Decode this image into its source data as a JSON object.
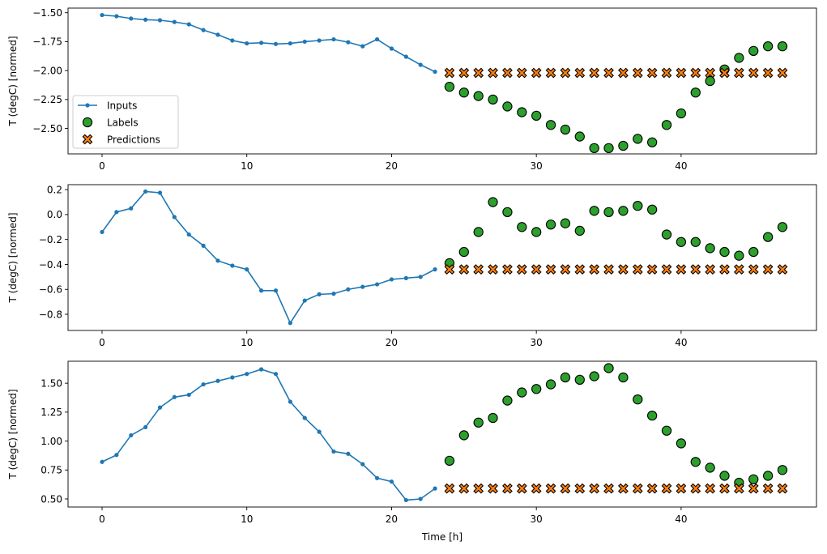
{
  "chart_data": [
    {
      "type": "line",
      "xlabel": "",
      "ylabel": "T (degC) [normed]",
      "xlim": [
        -2.35,
        49.35
      ],
      "ylim": [
        -2.72,
        -1.46
      ],
      "xticks": [
        0,
        10,
        20,
        30,
        40
      ],
      "yticks": [
        -2.5,
        -2.25,
        -2.0,
        -1.75,
        -1.5
      ],
      "ytick_labels": [
        "−2.50",
        "−2.25",
        "−2.00",
        "−1.75",
        "−1.50"
      ],
      "legend": {
        "placement": "lower-left",
        "entries": [
          "Inputs",
          "Labels",
          "Predictions"
        ]
      },
      "series": [
        {
          "name": "Inputs",
          "color": "#1f77b4",
          "x": [
            0,
            1,
            2,
            3,
            4,
            5,
            6,
            7,
            8,
            9,
            10,
            11,
            12,
            13,
            14,
            15,
            16,
            17,
            18,
            19,
            20,
            21,
            22,
            23
          ],
          "y": [
            -1.52,
            -1.53,
            -1.55,
            -1.56,
            -1.565,
            -1.58,
            -1.6,
            -1.65,
            -1.69,
            -1.74,
            -1.765,
            -1.76,
            -1.77,
            -1.765,
            -1.75,
            -1.74,
            -1.73,
            -1.755,
            -1.79,
            -1.73,
            -1.81,
            -1.88,
            -1.95,
            -2.01
          ]
        },
        {
          "name": "Labels",
          "color": "#2ca02c",
          "x": [
            24,
            25,
            26,
            27,
            28,
            29,
            30,
            31,
            32,
            33,
            34,
            35,
            36,
            37,
            38,
            39,
            40,
            41,
            42,
            43,
            44,
            45,
            46,
            47
          ],
          "y": [
            -2.14,
            -2.19,
            -2.22,
            -2.25,
            -2.31,
            -2.36,
            -2.39,
            -2.47,
            -2.51,
            -2.57,
            -2.67,
            -2.67,
            -2.65,
            -2.59,
            -2.62,
            -2.47,
            -2.37,
            -2.19,
            -2.09,
            -1.99,
            -1.89,
            -1.83,
            -1.79,
            -1.79
          ]
        },
        {
          "name": "Predictions",
          "color": "#ff7f0e",
          "x": [
            24,
            25,
            26,
            27,
            28,
            29,
            30,
            31,
            32,
            33,
            34,
            35,
            36,
            37,
            38,
            39,
            40,
            41,
            42,
            43,
            44,
            45,
            46,
            47
          ],
          "y": [
            -2.02,
            -2.02,
            -2.02,
            -2.02,
            -2.02,
            -2.02,
            -2.02,
            -2.02,
            -2.02,
            -2.02,
            -2.02,
            -2.02,
            -2.02,
            -2.02,
            -2.02,
            -2.02,
            -2.02,
            -2.02,
            -2.02,
            -2.02,
            -2.02,
            -2.02,
            -2.02,
            -2.02
          ]
        }
      ]
    },
    {
      "type": "line",
      "xlabel": "",
      "ylabel": "T (degC) [normed]",
      "xlim": [
        -2.35,
        49.35
      ],
      "ylim": [
        -0.93,
        0.24
      ],
      "xticks": [
        0,
        10,
        20,
        30,
        40
      ],
      "yticks": [
        -0.8,
        -0.6,
        -0.4,
        -0.2,
        0.0,
        0.2
      ],
      "ytick_labels": [
        "−0.8",
        "−0.6",
        "−0.4",
        "−0.2",
        "0.0",
        "0.2"
      ],
      "series": [
        {
          "name": "Inputs",
          "color": "#1f77b4",
          "x": [
            0,
            1,
            2,
            3,
            4,
            5,
            6,
            7,
            8,
            9,
            10,
            11,
            12,
            13,
            14,
            15,
            16,
            17,
            18,
            19,
            20,
            21,
            22,
            23
          ],
          "y": [
            -0.14,
            0.02,
            0.05,
            0.185,
            0.175,
            -0.02,
            -0.16,
            -0.25,
            -0.37,
            -0.41,
            -0.44,
            -0.61,
            -0.61,
            -0.87,
            -0.69,
            -0.64,
            -0.635,
            -0.6,
            -0.58,
            -0.56,
            -0.52,
            -0.51,
            -0.5,
            -0.44
          ]
        },
        {
          "name": "Labels",
          "color": "#2ca02c",
          "x": [
            24,
            25,
            26,
            27,
            28,
            29,
            30,
            31,
            32,
            33,
            34,
            35,
            36,
            37,
            38,
            39,
            40,
            41,
            42,
            43,
            44,
            45,
            46,
            47
          ],
          "y": [
            -0.39,
            -0.3,
            -0.14,
            0.1,
            0.02,
            -0.1,
            -0.14,
            -0.08,
            -0.07,
            -0.13,
            0.03,
            0.02,
            0.03,
            0.07,
            0.04,
            -0.16,
            -0.22,
            -0.22,
            -0.27,
            -0.3,
            -0.33,
            -0.3,
            -0.18,
            -0.1
          ]
        },
        {
          "name": "Predictions",
          "color": "#ff7f0e",
          "x": [
            24,
            25,
            26,
            27,
            28,
            29,
            30,
            31,
            32,
            33,
            34,
            35,
            36,
            37,
            38,
            39,
            40,
            41,
            42,
            43,
            44,
            45,
            46,
            47
          ],
          "y": [
            -0.44,
            -0.44,
            -0.44,
            -0.44,
            -0.44,
            -0.44,
            -0.44,
            -0.44,
            -0.44,
            -0.44,
            -0.44,
            -0.44,
            -0.44,
            -0.44,
            -0.44,
            -0.44,
            -0.44,
            -0.44,
            -0.44,
            -0.44,
            -0.44,
            -0.44,
            -0.44,
            -0.44
          ]
        }
      ]
    },
    {
      "type": "line",
      "xlabel": "Time [h]",
      "ylabel": "T (degC) [normed]",
      "xlim": [
        -2.35,
        49.35
      ],
      "ylim": [
        0.43,
        1.69
      ],
      "xticks": [
        0,
        10,
        20,
        30,
        40
      ],
      "yticks": [
        0.5,
        0.75,
        1.0,
        1.25,
        1.5
      ],
      "ytick_labels": [
        "0.50",
        "0.75",
        "1.00",
        "1.25",
        "1.50"
      ],
      "series": [
        {
          "name": "Inputs",
          "color": "#1f77b4",
          "x": [
            0,
            1,
            2,
            3,
            4,
            5,
            6,
            7,
            8,
            9,
            10,
            11,
            12,
            13,
            14,
            15,
            16,
            17,
            18,
            19,
            20,
            21,
            22,
            23
          ],
          "y": [
            0.82,
            0.88,
            1.05,
            1.12,
            1.29,
            1.38,
            1.4,
            1.49,
            1.52,
            1.55,
            1.58,
            1.62,
            1.58,
            1.34,
            1.2,
            1.08,
            0.91,
            0.89,
            0.8,
            0.68,
            0.65,
            0.49,
            0.5,
            0.59
          ]
        },
        {
          "name": "Labels",
          "color": "#2ca02c",
          "x": [
            24,
            25,
            26,
            27,
            28,
            29,
            30,
            31,
            32,
            33,
            34,
            35,
            36,
            37,
            38,
            39,
            40,
            41,
            42,
            43,
            44,
            45,
            46,
            47
          ],
          "y": [
            0.83,
            1.05,
            1.16,
            1.2,
            1.35,
            1.42,
            1.45,
            1.49,
            1.55,
            1.53,
            1.56,
            1.63,
            1.55,
            1.36,
            1.22,
            1.09,
            0.98,
            0.82,
            0.77,
            0.7,
            0.64,
            0.67,
            0.7,
            0.75
          ]
        },
        {
          "name": "Predictions",
          "color": "#ff7f0e",
          "x": [
            24,
            25,
            26,
            27,
            28,
            29,
            30,
            31,
            32,
            33,
            34,
            35,
            36,
            37,
            38,
            39,
            40,
            41,
            42,
            43,
            44,
            45,
            46,
            47
          ],
          "y": [
            0.59,
            0.59,
            0.59,
            0.59,
            0.59,
            0.59,
            0.59,
            0.59,
            0.59,
            0.59,
            0.59,
            0.59,
            0.59,
            0.59,
            0.59,
            0.59,
            0.59,
            0.59,
            0.59,
            0.59,
            0.59,
            0.59,
            0.59,
            0.59
          ]
        }
      ]
    }
  ]
}
